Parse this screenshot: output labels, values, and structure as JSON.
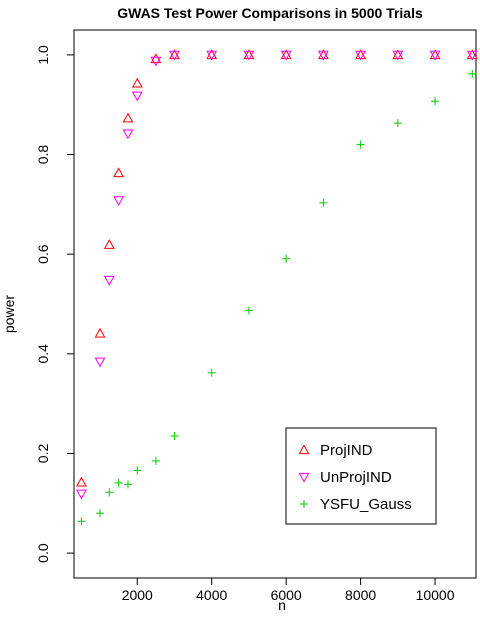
{
  "chart_data": {
    "type": "scatter",
    "title": "GWAS Test Power Comparisons in  5000 Trials",
    "xlabel": "n",
    "ylabel": "power",
    "xlim": [
      300,
      11100
    ],
    "ylim": [
      -0.05,
      1.05
    ],
    "x_ticks": [
      2000,
      4000,
      6000,
      8000,
      10000
    ],
    "x_tick_labels": [
      "2000",
      "4000",
      "6000",
      "8000",
      "10000"
    ],
    "y_ticks": [
      0.0,
      0.2,
      0.4,
      0.6,
      0.8,
      1.0
    ],
    "y_tick_labels": [
      "0.0",
      "0.2",
      "0.4",
      "0.6",
      "0.8",
      "1.0"
    ],
    "grid": false,
    "legend_position": "bottom-right",
    "series": [
      {
        "name": "ProjIND",
        "marker": "triangle-up",
        "color": "#ff0000",
        "points": [
          [
            500,
            0.142
          ],
          [
            1000,
            0.441
          ],
          [
            1250,
            0.619
          ],
          [
            1500,
            0.763
          ],
          [
            1750,
            0.873
          ],
          [
            2000,
            0.943
          ],
          [
            2500,
            0.992
          ],
          [
            3000,
            1.0
          ],
          [
            4000,
            1.0
          ],
          [
            5000,
            1.0
          ],
          [
            6000,
            1.0
          ],
          [
            7000,
            1.0
          ],
          [
            8000,
            1.0
          ],
          [
            9000,
            1.0
          ],
          [
            10000,
            1.0
          ],
          [
            11000,
            1.0
          ]
        ]
      },
      {
        "name": "UnProjIND",
        "marker": "triangle-down",
        "color": "#ff00ff",
        "points": [
          [
            500,
            0.119
          ],
          [
            1000,
            0.384
          ],
          [
            1250,
            0.548
          ],
          [
            1500,
            0.708
          ],
          [
            1750,
            0.842
          ],
          [
            2000,
            0.918
          ],
          [
            2500,
            0.988
          ],
          [
            3000,
            1.0
          ],
          [
            4000,
            1.0
          ],
          [
            5000,
            1.0
          ],
          [
            6000,
            1.0
          ],
          [
            7000,
            1.0
          ],
          [
            8000,
            1.0
          ],
          [
            9000,
            1.0
          ],
          [
            10000,
            1.0
          ],
          [
            11000,
            1.0
          ]
        ]
      },
      {
        "name": "YSFU_Gauss",
        "marker": "plus",
        "color": "#00cc00",
        "points": [
          [
            500,
            0.064
          ],
          [
            1000,
            0.08
          ],
          [
            1250,
            0.122
          ],
          [
            1500,
            0.141
          ],
          [
            1750,
            0.138
          ],
          [
            2000,
            0.166
          ],
          [
            2500,
            0.185
          ],
          [
            3000,
            0.235
          ],
          [
            4000,
            0.362
          ],
          [
            5000,
            0.487
          ],
          [
            6000,
            0.591
          ],
          [
            7000,
            0.703
          ],
          [
            8000,
            0.82
          ],
          [
            9000,
            0.863
          ],
          [
            10000,
            0.907
          ],
          [
            11000,
            0.962
          ]
        ]
      }
    ]
  }
}
